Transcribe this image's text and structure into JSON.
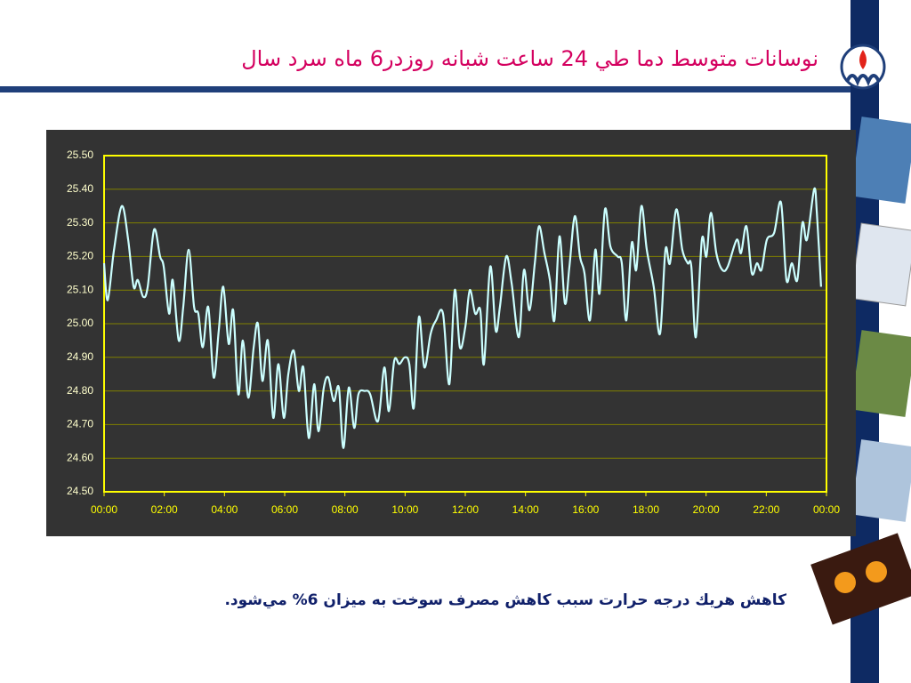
{
  "chart_data": {
    "type": "line",
    "title": "نوسانات متوسط دما طي 24 ساعت شبانه روزدر6 ماه سرد سال",
    "x": [
      0,
      0.12,
      0.33,
      0.59,
      0.8,
      0.98,
      1.12,
      1.3,
      1.45,
      1.66,
      1.86,
      1.98,
      2.16,
      2.28,
      2.48,
      2.63,
      2.81,
      2.99,
      3.13,
      3.28,
      3.46,
      3.64,
      3.81,
      3.96,
      4.14,
      4.29,
      4.46,
      4.61,
      4.79,
      4.97,
      5.11,
      5.26,
      5.44,
      5.62,
      5.79,
      5.97,
      6.12,
      6.3,
      6.47,
      6.62,
      6.8,
      6.98,
      7.12,
      7.3,
      7.45,
      7.63,
      7.8,
      7.95,
      8.13,
      8.31,
      8.45,
      8.66,
      8.84,
      9.1,
      9.31,
      9.46,
      9.64,
      9.81,
      9.99,
      10.14,
      10.29,
      10.46,
      10.64,
      10.85,
      11.03,
      11.26,
      11.47,
      11.65,
      11.82,
      12,
      12.15,
      12.33,
      12.5,
      12.62,
      12.83,
      13.01,
      13.15,
      13.36,
      13.54,
      13.78,
      13.95,
      14.13,
      14.31,
      14.45,
      14.63,
      14.81,
      14.96,
      15.13,
      15.31,
      15.46,
      15.64,
      15.81,
      15.96,
      16.14,
      16.32,
      16.46,
      16.64,
      16.82,
      17.06,
      17.2,
      17.35,
      17.53,
      17.68,
      17.85,
      18.03,
      18.26,
      18.47,
      18.65,
      18.8,
      19.01,
      19.21,
      19.39,
      19.51,
      19.66,
      19.86,
      20.01,
      20.16,
      20.34,
      20.54,
      20.72,
      21.02,
      21.16,
      21.34,
      21.52,
      21.69,
      21.84,
      22.02,
      22.26,
      22.49,
      22.67,
      22.85,
      23.03,
      23.2,
      23.35,
      23.59,
      23.68,
      23.82
    ],
    "values": [
      25.18,
      25.07,
      25.22,
      25.35,
      25.25,
      25.11,
      25.13,
      25.08,
      25.11,
      25.28,
      25.2,
      25.17,
      25.03,
      25.13,
      24.95,
      25.05,
      25.22,
      25.05,
      25.03,
      24.93,
      25.05,
      24.84,
      24.98,
      25.11,
      24.94,
      25.04,
      24.79,
      24.95,
      24.78,
      24.93,
      25,
      24.83,
      24.95,
      24.72,
      24.88,
      24.72,
      24.85,
      24.92,
      24.8,
      24.87,
      24.66,
      24.82,
      24.68,
      24.81,
      24.84,
      24.77,
      24.81,
      24.63,
      24.81,
      24.69,
      24.79,
      24.8,
      24.79,
      24.71,
      24.87,
      24.74,
      24.89,
      24.88,
      24.9,
      24.88,
      24.75,
      25.02,
      24.87,
      24.97,
      25.01,
      25.03,
      24.82,
      25.1,
      24.93,
      24.99,
      25.1,
      25.03,
      25.04,
      24.88,
      25.17,
      24.98,
      25.05,
      25.2,
      25.12,
      24.96,
      25.16,
      25.04,
      25.18,
      25.29,
      25.21,
      25.13,
      25.01,
      25.26,
      25.06,
      25.17,
      25.32,
      25.2,
      25.15,
      25.01,
      25.22,
      25.09,
      25.34,
      25.23,
      25.2,
      25.18,
      25.01,
      25.24,
      25.16,
      25.35,
      25.22,
      25.11,
      24.97,
      25.22,
      25.18,
      25.34,
      25.22,
      25.18,
      25.17,
      24.96,
      25.25,
      25.2,
      25.33,
      25.21,
      25.16,
      25.17,
      25.25,
      25.21,
      25.29,
      25.15,
      25.18,
      25.16,
      25.25,
      25.27,
      25.36,
      25.13,
      25.18,
      25.13,
      25.3,
      25.25,
      25.4,
      25.33,
      25.11
    ],
    "color": "#ccffff",
    "xlim": [
      0,
      24
    ],
    "xticks": [
      {
        "value": 0,
        "label": "00:00"
      },
      {
        "value": 2,
        "label": "02:00"
      },
      {
        "value": 4,
        "label": "04:00"
      },
      {
        "value": 6,
        "label": "06:00"
      },
      {
        "value": 8,
        "label": "08:00"
      },
      {
        "value": 10,
        "label": "10:00"
      },
      {
        "value": 12,
        "label": "12:00"
      },
      {
        "value": 14,
        "label": "14:00"
      },
      {
        "value": 16,
        "label": "16:00"
      },
      {
        "value": 18,
        "label": "18:00"
      },
      {
        "value": 20,
        "label": "20:00"
      },
      {
        "value": 22,
        "label": "22:00"
      },
      {
        "value": 24,
        "label": "00:00"
      }
    ],
    "ylim": [
      24.5,
      25.5
    ],
    "yticks": [
      {
        "value": 24.5,
        "label": "24.50"
      },
      {
        "value": 24.6,
        "label": "24.60"
      },
      {
        "value": 24.7,
        "label": "24.70"
      },
      {
        "value": 24.8,
        "label": "24.80"
      },
      {
        "value": 24.9,
        "label": "24.90"
      },
      {
        "value": 25,
        "label": "25.00"
      },
      {
        "value": 25.1,
        "label": "25.10"
      },
      {
        "value": 25.2,
        "label": "25.20"
      },
      {
        "value": 25.3,
        "label": "25.30"
      },
      {
        "value": 25.4,
        "label": "25.40"
      },
      {
        "value": 25.5,
        "label": "25.50"
      }
    ],
    "grid": true
  },
  "note": "كاهش هريك درجه حرارت سبب كاهش مصرف سوخت به ميزان 6% مي‌شود."
}
